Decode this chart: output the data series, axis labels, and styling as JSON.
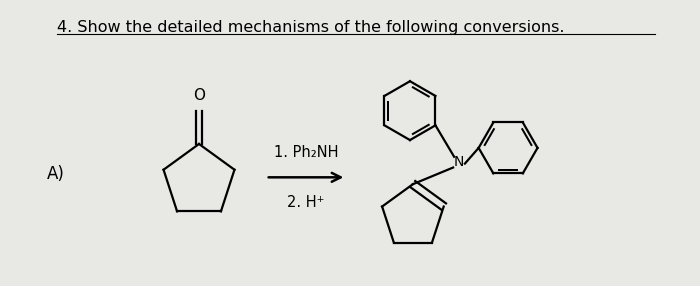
{
  "title": "4. Show the detailed mechanisms of the following conversions.",
  "label_A": "A)",
  "reagent1": "1. Ph₂NH",
  "reagent2": "2. H⁺",
  "bg_color": "#e8e8e4",
  "title_fontsize": 11.5,
  "label_fontsize": 12,
  "reagent_fontsize": 10.5,
  "fig_width": 7.0,
  "fig_height": 2.86
}
